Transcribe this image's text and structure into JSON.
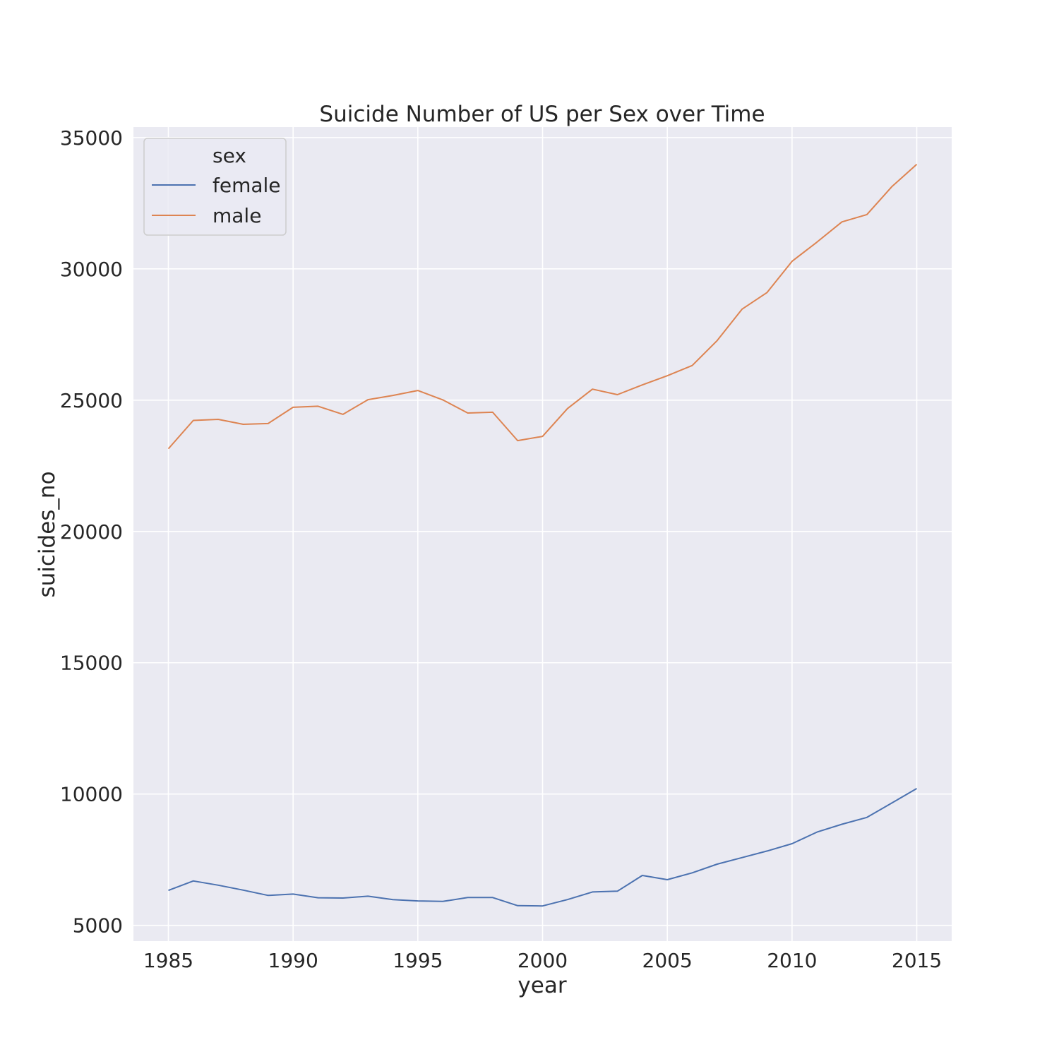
{
  "chart_data": {
    "type": "line",
    "title": "Suicide Number of US per Sex over Time",
    "xlabel": "year",
    "ylabel": "suicides_no",
    "xlim": [
      1983.6,
      2016.4
    ],
    "ylim": [
      4400,
      35400
    ],
    "x_ticks": [
      1985,
      1990,
      1995,
      2000,
      2005,
      2010,
      2015
    ],
    "y_ticks": [
      5000,
      10000,
      15000,
      20000,
      25000,
      30000,
      35000
    ],
    "grid": true,
    "legend": {
      "title": "sex",
      "placement": "top-left"
    },
    "x": [
      1985,
      1986,
      1987,
      1988,
      1989,
      1990,
      1991,
      1992,
      1993,
      1994,
      1995,
      1996,
      1997,
      1998,
      1999,
      2000,
      2001,
      2002,
      2003,
      2004,
      2005,
      2006,
      2007,
      2008,
      2009,
      2010,
      2011,
      2012,
      2013,
      2014,
      2015
    ],
    "series": [
      {
        "name": "female",
        "color": "#4c72b0",
        "values": [
          6330,
          6690,
          6530,
          6340,
          6140,
          6190,
          6050,
          6040,
          6110,
          5980,
          5930,
          5910,
          6060,
          6060,
          5750,
          5740,
          5980,
          6270,
          6300,
          6900,
          6740,
          7000,
          7330,
          7580,
          7830,
          8110,
          8550,
          8850,
          9110,
          9660,
          10210
        ]
      },
      {
        "name": "male",
        "color": "#dd8452",
        "values": [
          23150,
          24230,
          24270,
          24080,
          24110,
          24730,
          24770,
          24460,
          25020,
          25180,
          25370,
          25010,
          24510,
          24540,
          23460,
          23620,
          24680,
          25420,
          25210,
          25580,
          25930,
          26320,
          27270,
          28470,
          29100,
          30290,
          31020,
          31790,
          32070,
          33130,
          33980
        ]
      }
    ]
  }
}
